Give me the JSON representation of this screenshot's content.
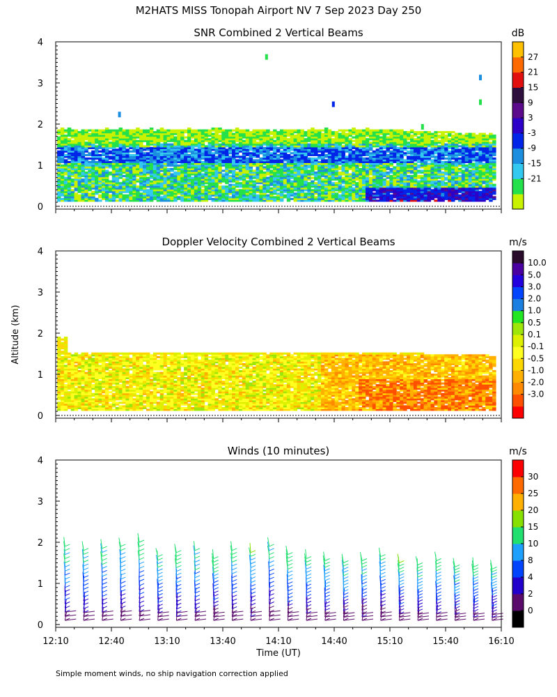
{
  "page": {
    "title": "M2HATS MISS Tonopah Airport NV   7 Sep 2023 Day 250",
    "footnote": "Simple moment winds, no ship navigation correction applied"
  },
  "chart_data": [
    {
      "type": "heatmap",
      "title": "SNR Combined 2 Vertical Beams",
      "ylabel": "",
      "xlim": [
        "12:10",
        "16:10"
      ],
      "ylim": [
        0,
        4
      ],
      "yticks": [
        "0",
        "1",
        "2",
        "3",
        "4"
      ],
      "colorbar": {
        "unit": "dB",
        "labels": [
          "27",
          "21",
          "15",
          "9",
          "3",
          "-3",
          "-9",
          "-15",
          "-21"
        ],
        "colors": [
          "#c8f200",
          "#24e04a",
          "#33c8f0",
          "#1c8ee0",
          "#0024e8",
          "#2c00c8",
          "#5a0a8a",
          "#2d0e3c",
          "#e20f0f",
          "#ff6a00",
          "#ffc000"
        ]
      },
      "echo_top_km": 1.85
    },
    {
      "type": "heatmap",
      "title": "Doppler Velocity Combined 2 Vertical Beams",
      "ylabel": "Altitude (km)",
      "xlim": [
        "12:10",
        "16:10"
      ],
      "ylim": [
        0,
        4
      ],
      "yticks": [
        "0",
        "1",
        "2",
        "3",
        "4"
      ],
      "colorbar": {
        "unit": "m/s",
        "labels": [
          "10.0",
          "5.0",
          "3.0",
          "2.0",
          "1.0",
          "0.5",
          "0.1",
          "-0.1",
          "-0.5",
          "-1.0",
          "-2.0",
          "-3.0"
        ],
        "colors": [
          "#ff0000",
          "#ff5000",
          "#ff8a00",
          "#ffb000",
          "#ffd700",
          "#ffff20",
          "#dcf000",
          "#9ee60a",
          "#22e622",
          "#1a7fe0",
          "#0044ff",
          "#2200dd",
          "#4a00a0",
          "#2a0a2a"
        ]
      },
      "echo_top_km": 1.55
    },
    {
      "type": "scatter",
      "title": "Winds (10 minutes)",
      "xlabel": "Time (UT)",
      "xticks": [
        "12:10",
        "12:40",
        "13:10",
        "13:40",
        "14:10",
        "14:40",
        "15:10",
        "15:40",
        "16:10"
      ],
      "ylim": [
        0,
        4
      ],
      "yticks": [
        "0",
        "1",
        "2",
        "3",
        "4"
      ],
      "colorbar": {
        "unit": "m/s",
        "labels": [
          "30",
          "25",
          "20",
          "15",
          "10",
          "8",
          "4",
          "2",
          "0"
        ],
        "colors": [
          "#000000",
          "#5a0a6a",
          "#2200cc",
          "#0044ff",
          "#1ea0ff",
          "#22e070",
          "#88e000",
          "#ffb000",
          "#ff6a00",
          "#ff0000"
        ]
      },
      "profile_times": [
        "12:15",
        "12:25",
        "12:35",
        "12:45",
        "12:55",
        "13:05",
        "13:15",
        "13:25",
        "13:35",
        "13:45",
        "13:55",
        "14:05",
        "14:15",
        "14:25",
        "14:35",
        "14:45",
        "14:55",
        "15:05",
        "15:15",
        "15:25",
        "15:35",
        "15:45",
        "15:55",
        "16:05"
      ],
      "profile_top_km": [
        1.9,
        1.8,
        1.85,
        1.9,
        2.0,
        1.65,
        1.75,
        1.8,
        1.6,
        1.8,
        1.75,
        1.9,
        1.7,
        1.6,
        1.55,
        1.5,
        1.55,
        1.65,
        1.5,
        1.45,
        1.55,
        1.4,
        1.4,
        1.35
      ]
    }
  ]
}
